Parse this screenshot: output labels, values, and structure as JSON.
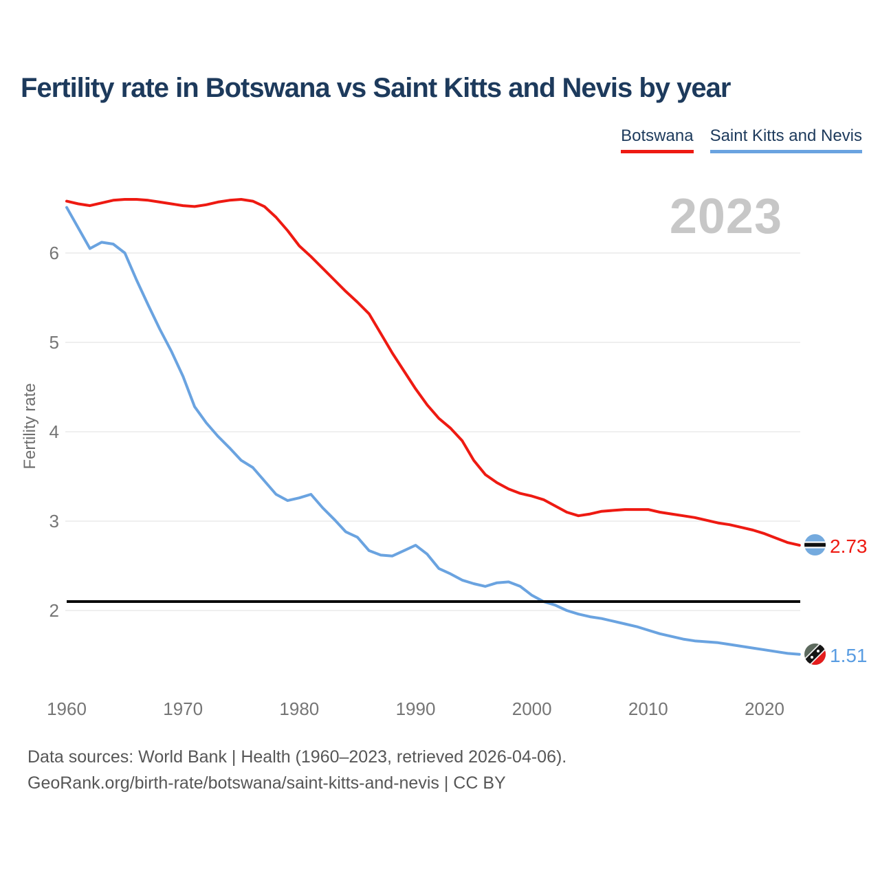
{
  "title": "Fertility rate in Botswana vs Saint Kitts and Nevis by year",
  "year_watermark": "2023",
  "legend": [
    {
      "label": "Botswana",
      "color": "#ee1a12"
    },
    {
      "label": "Saint Kitts and Nevis",
      "color": "#6aa3e0"
    }
  ],
  "footer": {
    "line1": "Data sources: World Bank | Health (1960–2023, retrieved 2026-04-06).",
    "line2": "GeoRank.org/birth-rate/botswana/saint-kitts-and-nevis | CC BY"
  },
  "chart_data": {
    "type": "line",
    "title": "Fertility rate in Botswana vs Saint Kitts and Nevis by year",
    "xlabel": "",
    "ylabel": "Fertility rate",
    "grid": "horizontal",
    "legend_position": "top-right",
    "xticks": [
      "1960",
      "1970",
      "1980",
      "1990",
      "2000",
      "2010",
      "2020"
    ],
    "yticks": [
      "2",
      "3",
      "4",
      "5",
      "6"
    ],
    "ylim": [
      1.4,
      6.8
    ],
    "xlim": [
      1960,
      2023
    ],
    "reference_line": {
      "value": 2.1,
      "color": "#0a0a0a"
    },
    "x": [
      1960,
      1961,
      1962,
      1963,
      1964,
      1965,
      1966,
      1967,
      1968,
      1969,
      1970,
      1971,
      1972,
      1973,
      1974,
      1975,
      1976,
      1977,
      1978,
      1979,
      1980,
      1981,
      1982,
      1983,
      1984,
      1985,
      1986,
      1987,
      1988,
      1989,
      1990,
      1991,
      1992,
      1993,
      1994,
      1995,
      1996,
      1997,
      1998,
      1999,
      2000,
      2001,
      2002,
      2003,
      2004,
      2005,
      2006,
      2007,
      2008,
      2009,
      2010,
      2011,
      2012,
      2013,
      2014,
      2015,
      2016,
      2017,
      2018,
      2019,
      2020,
      2021,
      2022,
      2023
    ],
    "series": [
      {
        "name": "Botswana",
        "color": "#ee1a12",
        "end_label": "2.73",
        "values": [
          6.58,
          6.55,
          6.53,
          6.56,
          6.59,
          6.6,
          6.6,
          6.59,
          6.57,
          6.55,
          6.53,
          6.52,
          6.54,
          6.57,
          6.59,
          6.6,
          6.58,
          6.52,
          6.4,
          6.25,
          6.08,
          5.96,
          5.83,
          5.7,
          5.57,
          5.45,
          5.32,
          5.1,
          4.88,
          4.68,
          4.48,
          4.3,
          4.15,
          4.04,
          3.9,
          3.68,
          3.52,
          3.43,
          3.36,
          3.31,
          3.28,
          3.24,
          3.17,
          3.1,
          3.06,
          3.08,
          3.11,
          3.12,
          3.13,
          3.13,
          3.13,
          3.1,
          3.08,
          3.06,
          3.04,
          3.01,
          2.98,
          2.96,
          2.93,
          2.9,
          2.86,
          2.81,
          2.76,
          2.73
        ]
      },
      {
        "name": "Saint Kitts and Nevis",
        "color": "#6aa3e0",
        "end_label": "1.51",
        "values": [
          6.51,
          6.28,
          6.05,
          6.12,
          6.1,
          6.0,
          5.7,
          5.42,
          5.15,
          4.9,
          4.62,
          4.28,
          4.1,
          3.95,
          3.82,
          3.68,
          3.6,
          3.45,
          3.3,
          3.23,
          3.26,
          3.3,
          3.15,
          3.02,
          2.88,
          2.82,
          2.67,
          2.62,
          2.61,
          2.67,
          2.73,
          2.63,
          2.47,
          2.41,
          2.34,
          2.3,
          2.27,
          2.31,
          2.32,
          2.27,
          2.17,
          2.1,
          2.06,
          2.0,
          1.96,
          1.93,
          1.91,
          1.88,
          1.85,
          1.82,
          1.78,
          1.74,
          1.71,
          1.68,
          1.66,
          1.65,
          1.64,
          1.62,
          1.6,
          1.58,
          1.56,
          1.54,
          1.52,
          1.51
        ]
      }
    ]
  }
}
